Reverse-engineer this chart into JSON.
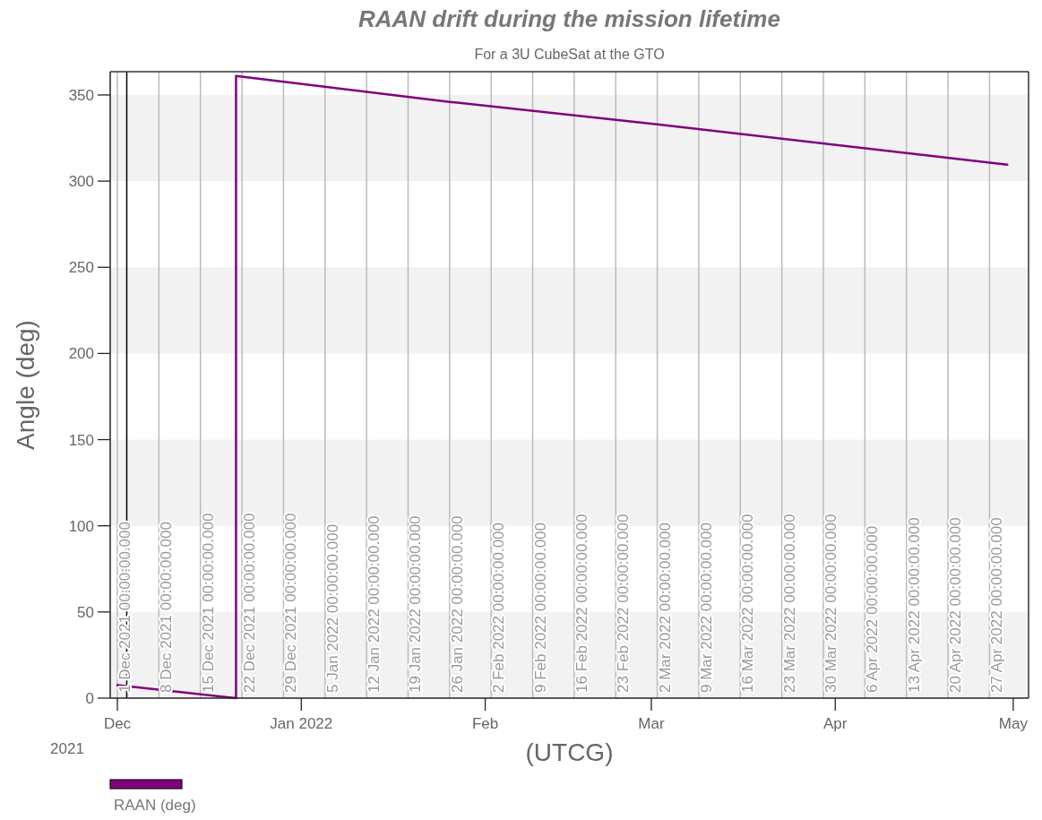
{
  "chart_data": {
    "type": "line",
    "title": "RAAN drift during the mission lifetime",
    "subtitle": "For a 3U CubeSat at the GTO",
    "xlabel": "(UTCG)",
    "ylabel": "Angle (deg)",
    "x": [
      "2021-12-01",
      "2021-12-21",
      "2021-12-21",
      "2022-01-26",
      "2022-03-02",
      "2022-04-30"
    ],
    "series": [
      {
        "name": "RAAN (deg)",
        "color": "#800080",
        "values": [
          7.5,
          0,
          361,
          346,
          333,
          309.5
        ]
      }
    ],
    "xlim": [
      "2021-11-29T19:00",
      "2022-05-03T14:00"
    ],
    "xticks": [
      {
        "value": "2021-12-01",
        "label": "Dec"
      },
      {
        "value": "2022-01-01",
        "label": "Jan 2022"
      },
      {
        "value": "2022-02-01",
        "label": "Feb"
      },
      {
        "value": "2022-03-01",
        "label": "Mar"
      },
      {
        "value": "2022-04-01",
        "label": "Apr"
      },
      {
        "value": "2022-05-01",
        "label": "May"
      }
    ],
    "annotations": [
      "2021"
    ],
    "ylim": [
      0,
      363.5
    ],
    "yticks": [
      0,
      50,
      100,
      150,
      200,
      250,
      300,
      350
    ],
    "bands": [
      {
        "axis": "y",
        "from": 0,
        "to": 50,
        "color": "#f2f2f2"
      },
      {
        "axis": "y",
        "from": 100,
        "to": 150,
        "color": "#f2f2f2"
      },
      {
        "axis": "y",
        "from": 200,
        "to": 250,
        "color": "#f2f2f2"
      },
      {
        "axis": "y",
        "from": 300,
        "to": 350,
        "color": "#f2f2f2"
      }
    ],
    "ref_lines": [
      {
        "axis": "x",
        "value": "2021-12-02T14:00",
        "label": null,
        "color": "#000000"
      },
      {
        "axis": "x",
        "value": "2021-12-01",
        "label": "1 Dec 2021 00:00:00.000",
        "color": "#bbbbbb"
      },
      {
        "axis": "x",
        "value": "2021-12-08",
        "label": "8 Dec 2021 00:00:00.000",
        "color": "#bbbbbb"
      },
      {
        "axis": "x",
        "value": "2021-12-15",
        "label": "15 Dec 2021 00:00:00.000",
        "color": "#bbbbbb"
      },
      {
        "axis": "x",
        "value": "2021-12-22",
        "label": "22 Dec 2021 00:00:00.000",
        "color": "#bbbbbb"
      },
      {
        "axis": "x",
        "value": "2021-12-29",
        "label": "29 Dec 2021 00:00:00.000",
        "color": "#bbbbbb"
      },
      {
        "axis": "x",
        "value": "2022-01-05",
        "label": "5 Jan 2022 00:00:00.000",
        "color": "#bbbbbb"
      },
      {
        "axis": "x",
        "value": "2022-01-12",
        "label": "12 Jan 2022 00:00:00.000",
        "color": "#bbbbbb"
      },
      {
        "axis": "x",
        "value": "2022-01-19",
        "label": "19 Jan 2022 00:00:00.000",
        "color": "#bbbbbb"
      },
      {
        "axis": "x",
        "value": "2022-01-26",
        "label": "26 Jan 2022 00:00:00.000",
        "color": "#bbbbbb"
      },
      {
        "axis": "x",
        "value": "2022-02-02",
        "label": "2 Feb 2022 00:00:00.000",
        "color": "#bbbbbb"
      },
      {
        "axis": "x",
        "value": "2022-02-09",
        "label": "9 Feb 2022 00:00:00.000",
        "color": "#bbbbbb"
      },
      {
        "axis": "x",
        "value": "2022-02-16",
        "label": "16 Feb 2022 00:00:00.000",
        "color": "#bbbbbb"
      },
      {
        "axis": "x",
        "value": "2022-02-23",
        "label": "23 Feb 2022 00:00:00.000",
        "color": "#bbbbbb"
      },
      {
        "axis": "x",
        "value": "2022-03-02",
        "label": "2 Mar 2022 00:00:00.000",
        "color": "#bbbbbb"
      },
      {
        "axis": "x",
        "value": "2022-03-09",
        "label": "9 Mar 2022 00:00:00.000",
        "color": "#bbbbbb"
      },
      {
        "axis": "x",
        "value": "2022-03-16",
        "label": "16 Mar 2022 00:00:00.000",
        "color": "#bbbbbb"
      },
      {
        "axis": "x",
        "value": "2022-03-23",
        "label": "23 Mar 2022 00:00:00.000",
        "color": "#bbbbbb"
      },
      {
        "axis": "x",
        "value": "2022-03-30",
        "label": "30 Mar 2022 00:00:00.000",
        "color": "#bbbbbb"
      },
      {
        "axis": "x",
        "value": "2022-04-06",
        "label": "6 Apr 2022 00:00:00.000",
        "color": "#bbbbbb"
      },
      {
        "axis": "x",
        "value": "2022-04-13",
        "label": "13 Apr 2022 00:00:00.000",
        "color": "#bbbbbb"
      },
      {
        "axis": "x",
        "value": "2022-04-20",
        "label": "20 Apr 2022 00:00:00.000",
        "color": "#bbbbbb"
      },
      {
        "axis": "x",
        "value": "2022-04-27",
        "label": "27 Apr 2022 00:00:00.000",
        "color": "#bbbbbb"
      }
    ],
    "legend": "bottom left",
    "line_style": "solid",
    "grid": false
  }
}
